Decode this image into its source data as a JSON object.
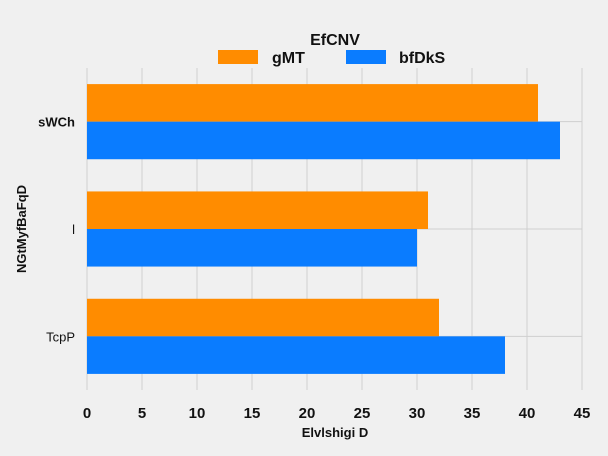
{
  "chart_data": {
    "type": "bar",
    "orientation": "horizontal",
    "title": "EfCNV",
    "xlabel": "Elvlshigi D",
    "ylabel": "NGtMyfBaFqD",
    "categories": [
      "sWCh",
      "l",
      "TcpP"
    ],
    "series": [
      {
        "name": "gMT",
        "color": "#ff8c00",
        "values": [
          41,
          31,
          32
        ]
      },
      {
        "name": "bfDkS",
        "color": "#0a7cff",
        "values": [
          43,
          30,
          38
        ]
      }
    ],
    "xlim": [
      0,
      45
    ],
    "xticks": [
      "0",
      "5",
      "10",
      "15",
      "20",
      "25",
      "30",
      "35",
      "40",
      "45"
    ],
    "grid": true,
    "legend_position": "top-center"
  }
}
